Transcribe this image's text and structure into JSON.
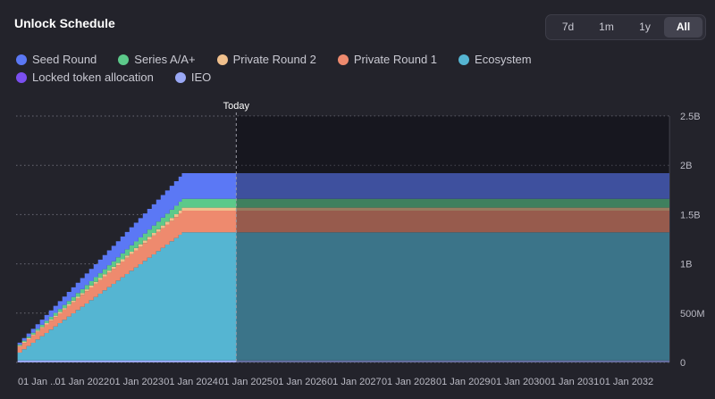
{
  "header": {
    "title": "Unlock Schedule"
  },
  "range_buttons": [
    {
      "label": "7d",
      "active": false
    },
    {
      "label": "1m",
      "active": false
    },
    {
      "label": "1y",
      "active": false
    },
    {
      "label": "All",
      "active": true
    }
  ],
  "chart_data": {
    "type": "area",
    "stacked": true,
    "title": "Unlock Schedule",
    "today_label": "Today",
    "today_date": "2025-05-01",
    "x_start": "2021-04-15",
    "x_end": "2033-04-15",
    "ylim": [
      0,
      2500000000
    ],
    "yticks": [
      0,
      500000000,
      1000000000,
      1500000000,
      2000000000,
      2500000000
    ],
    "ytick_labels": [
      "0",
      "500M",
      "1B",
      "1.5B",
      "2B",
      "2.5B"
    ],
    "xtick_labels": [
      "01 Jan ...",
      "01 Jan 2022",
      "01 Jan 2023",
      "01 Jan 2024",
      "01 Jan 2025",
      "01 Jan 2026",
      "01 Jan 2027",
      "01 Jan 2028",
      "01 Jan 2029",
      "01 Jan 2030",
      "01 Jan 2031",
      "01 Jan 2032"
    ],
    "xtick_dates": [
      "2021-01-01",
      "2022-01-01",
      "2023-01-01",
      "2024-01-01",
      "2025-01-01",
      "2026-01-01",
      "2027-01-01",
      "2028-01-01",
      "2029-01-01",
      "2030-01-01",
      "2031-01-01",
      "2032-01-01"
    ],
    "legend": [
      {
        "name": "Seed Round",
        "color": "#5b78f5"
      },
      {
        "name": "Series A/A+",
        "color": "#5cc98a"
      },
      {
        "name": "Private Round 2",
        "color": "#f0c08d"
      },
      {
        "name": "Private Round 1",
        "color": "#ee8a6e"
      },
      {
        "name": "Ecosystem",
        "color": "#55b5d2"
      },
      {
        "name": "Locked token allocation",
        "color": "#7b4ff0"
      },
      {
        "name": "IEO",
        "color": "#9aa8f5"
      }
    ],
    "series": [
      {
        "name": "IEO",
        "color": "#9aa8f5",
        "start": "2021-04-25",
        "end": "2021-04-25",
        "initial": 20000000,
        "final": 20000000
      },
      {
        "name": "Locked token allocation",
        "color": "#7b4ff0",
        "start": "2021-04-25",
        "end": "2021-04-25",
        "initial": 0,
        "final": 0
      },
      {
        "name": "Ecosystem",
        "color": "#55b5d2",
        "start": "2021-04-25",
        "end": "2024-05-01",
        "initial": 80000000,
        "final": 1300000000
      },
      {
        "name": "Private Round 1",
        "color": "#ee8a6e",
        "start": "2021-04-25",
        "end": "2024-05-01",
        "initial": 60000000,
        "final": 220000000
      },
      {
        "name": "Private Round 2",
        "color": "#f0c08d",
        "start": "2021-04-25",
        "end": "2024-05-01",
        "initial": 10000000,
        "final": 30000000
      },
      {
        "name": "Series A/A+",
        "color": "#5cc98a",
        "start": "2021-04-25",
        "end": "2024-05-01",
        "initial": 10000000,
        "final": 90000000
      },
      {
        "name": "Seed Round",
        "color": "#5b78f5",
        "start": "2021-04-25",
        "end": "2024-05-01",
        "initial": 20000000,
        "final": 260000000
      }
    ]
  }
}
